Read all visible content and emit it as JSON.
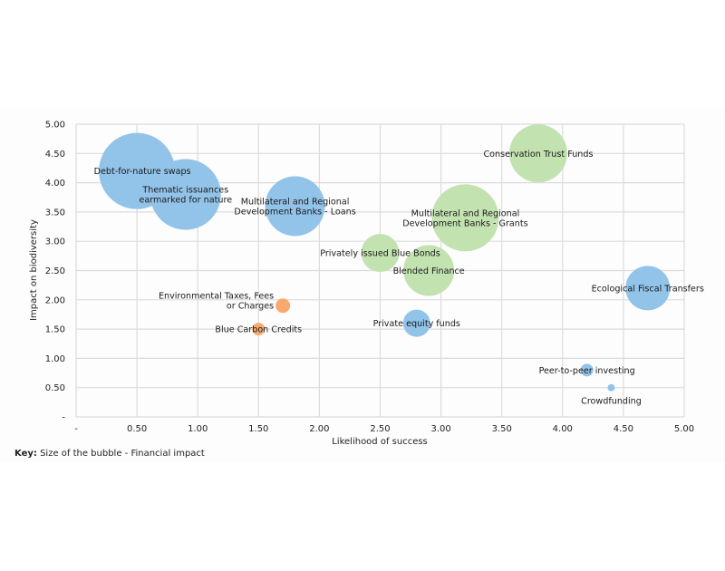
{
  "chart_data": {
    "type": "bubble",
    "title": "",
    "xlabel": "Likelihood of success",
    "ylabel": "Impact on biodiversity",
    "xlim": [
      0,
      5
    ],
    "ylim": [
      0,
      5
    ],
    "x_ticks": [
      "-",
      "0.50",
      "1.00",
      "1.50",
      "2.00",
      "2.50",
      "3.00",
      "3.50",
      "4.00",
      "4.50",
      "5.00"
    ],
    "y_ticks": [
      "-",
      "0.50",
      "1.00",
      "1.50",
      "2.00",
      "2.50",
      "3.00",
      "3.50",
      "4.00",
      "4.50",
      "5.00"
    ],
    "grid": true,
    "size_meaning": "Financial impact",
    "colors": {
      "blue": "#92C3E9",
      "green": "#C2E2B0",
      "orange": "#F9A870"
    },
    "points": [
      {
        "name": "Debt-for-nature swaps",
        "lines": [
          "Debt-for-nature swaps"
        ],
        "x": 0.5,
        "y": 4.2,
        "size": 42,
        "color": "blue",
        "label_pos": "center-offset-up"
      },
      {
        "name": "Thematic issuances earmarked for nature",
        "lines": [
          "Thematic issuances",
          "earmarked for nature"
        ],
        "x": 0.9,
        "y": 3.8,
        "size": 39,
        "color": "blue",
        "label_pos": "center"
      },
      {
        "name": "Multilateral and Regional Development Banks - Loans",
        "lines": [
          "Multilateral and Regional",
          "Development Banks - Loans"
        ],
        "x": 1.8,
        "y": 3.6,
        "size": 33,
        "color": "blue",
        "label_pos": "center"
      },
      {
        "name": "Conservation Trust Funds",
        "lines": [
          "Conservation Trust Funds"
        ],
        "x": 3.8,
        "y": 4.5,
        "size": 32,
        "color": "green",
        "label_pos": "center"
      },
      {
        "name": "Multilateral and Regional Development Banks - Grants",
        "lines": [
          "Multilateral and Regional",
          "Development Banks - Grants"
        ],
        "x": 3.2,
        "y": 3.4,
        "size": 37,
        "color": "green",
        "label_pos": "center"
      },
      {
        "name": "Privately issued Blue Bonds",
        "lines": [
          "Privately issued Blue Bonds"
        ],
        "x": 2.5,
        "y": 2.8,
        "size": 21,
        "color": "green",
        "label_pos": "center"
      },
      {
        "name": "Blended Finance",
        "lines": [
          "Blended Finance"
        ],
        "x": 2.9,
        "y": 2.5,
        "size": 28,
        "color": "green",
        "label_pos": "center"
      },
      {
        "name": "Ecological Fiscal Transfers",
        "lines": [
          "Ecological Fiscal Transfers"
        ],
        "x": 4.7,
        "y": 2.2,
        "size": 24.5,
        "color": "blue",
        "label_pos": "center"
      },
      {
        "name": "Private equity funds",
        "lines": [
          "Private equity funds"
        ],
        "x": 2.8,
        "y": 1.6,
        "size": 15,
        "color": "blue",
        "label_pos": "center"
      },
      {
        "name": "Environmental Taxes, Fees or Charges",
        "lines": [
          "Environmental Taxes, Fees",
          "or Charges"
        ],
        "x": 1.7,
        "y": 1.9,
        "size": 8,
        "color": "orange",
        "label_pos": "left"
      },
      {
        "name": "Blue Carbon Credits",
        "lines": [
          "Blue Carbon Credits"
        ],
        "x": 1.5,
        "y": 1.5,
        "size": 7,
        "color": "orange",
        "label_pos": "center"
      },
      {
        "name": "Peer-to-peer investing",
        "lines": [
          "Peer-to-peer investing"
        ],
        "x": 4.2,
        "y": 0.8,
        "size": 7,
        "color": "blue",
        "label_pos": "center"
      },
      {
        "name": "Crowdfunding",
        "lines": [
          "Crowdfunding"
        ],
        "x": 4.4,
        "y": 0.5,
        "size": 4,
        "color": "blue",
        "label_pos": "below"
      }
    ]
  },
  "key": {
    "label": "Key:",
    "text": "Size of the bubble - Financial impact"
  }
}
